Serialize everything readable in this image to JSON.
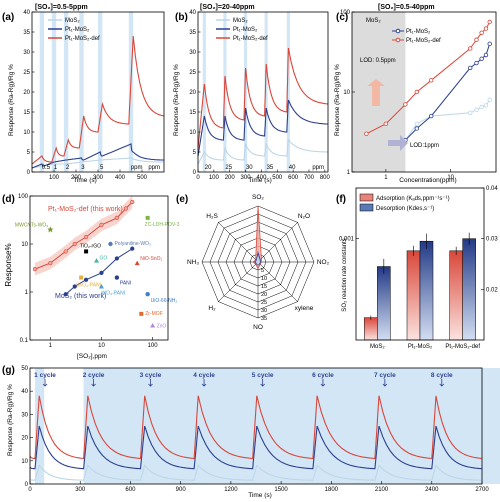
{
  "colors": {
    "mos2": "#bcd6e8",
    "pt1": "#2b3f8f",
    "def": "#d9473a",
    "band": "#d3e6f5"
  },
  "chart_data": [
    {
      "panel": "(a)",
      "type": "line",
      "title": "[SO₂]=0.5-5ppm",
      "xlabel": "Time (s)",
      "ylabel": "Response (Ra-Rg)/Rg %",
      "xlim": [
        0,
        600
      ],
      "ylim": [
        0,
        40
      ],
      "xticks": [
        100,
        200,
        300,
        400,
        500
      ],
      "yticks": [
        0,
        5,
        10,
        15,
        20,
        25,
        30,
        35,
        40
      ],
      "legend": [
        "MoS₂",
        "Pt₁-MoS₂",
        "Pt₁-MoS₂-def"
      ],
      "annotations": [
        "0.5",
        "1",
        "2",
        "3",
        "5",
        "ppm"
      ],
      "bands": [
        [
          35,
          55
        ],
        [
          90,
          110
        ],
        [
          145,
          165
        ],
        [
          215,
          235
        ],
        [
          300,
          320
        ],
        [
          440,
          460
        ]
      ],
      "series": [
        {
          "name": "MoS₂",
          "points": [
            [
              0,
              1
            ],
            [
              45,
              1.5
            ],
            [
              100,
              2
            ],
            [
              155,
              2
            ],
            [
              225,
              2.5
            ],
            [
              310,
              3
            ],
            [
              450,
              3.5
            ],
            [
              600,
              2.5
            ]
          ]
        },
        {
          "name": "Pt₁-MoS₂",
          "points": [
            [
              0,
              1
            ],
            [
              45,
              2
            ],
            [
              55,
              1.5
            ],
            [
              100,
              2.5
            ],
            [
              155,
              3
            ],
            [
              225,
              3.5
            ],
            [
              235,
              3
            ],
            [
              310,
              5
            ],
            [
              320,
              4
            ],
            [
              450,
              7
            ],
            [
              460,
              5
            ],
            [
              600,
              3
            ]
          ]
        },
        {
          "name": "Pt₁-MoS₂-def",
          "points": [
            [
              0,
              2
            ],
            [
              45,
              4
            ],
            [
              90,
              2.5
            ],
            [
              110,
              6
            ],
            [
              145,
              4
            ],
            [
              165,
              8
            ],
            [
              215,
              6
            ],
            [
              235,
              14
            ],
            [
              300,
              10
            ],
            [
              320,
              17
            ],
            [
              440,
              12
            ],
            [
              460,
              34
            ],
            [
              600,
              14
            ]
          ]
        }
      ]
    },
    {
      "panel": "(b)",
      "type": "line",
      "title": "[SO₂]=20-40ppm",
      "xlabel": "Time (s)",
      "ylabel": "Response (Ra-Rg)/Rg %",
      "xlim": [
        0,
        820
      ],
      "ylim": [
        0,
        40
      ],
      "xticks": [
        0,
        100,
        200,
        300,
        400,
        500,
        600,
        700,
        800
      ],
      "yticks": [
        0,
        5,
        10,
        15,
        20,
        25,
        30,
        35,
        40
      ],
      "legend": [
        "MoS₂",
        "Pt₁-MoS₂",
        "Pt₁-MoS₂-def"
      ],
      "annotations": [
        "20",
        "25",
        "30",
        "35",
        "40",
        "ppm"
      ],
      "bands": [
        [
          30,
          50
        ],
        [
          160,
          180
        ],
        [
          290,
          310
        ],
        [
          420,
          440
        ],
        [
          560,
          580
        ]
      ],
      "series": [
        {
          "name": "MoS₂",
          "points": [
            [
              0,
              2
            ],
            [
              40,
              5
            ],
            [
              160,
              3
            ],
            [
              170,
              6
            ],
            [
              290,
              3
            ],
            [
              300,
              7
            ],
            [
              420,
              4
            ],
            [
              430,
              7
            ],
            [
              560,
              4
            ],
            [
              570,
              8
            ],
            [
              820,
              5
            ]
          ]
        },
        {
          "name": "Pt₁-MoS₂",
          "points": [
            [
              0,
              4
            ],
            [
              40,
              14
            ],
            [
              160,
              8
            ],
            [
              170,
              14
            ],
            [
              290,
              8
            ],
            [
              300,
              16
            ],
            [
              420,
              9
            ],
            [
              430,
              16
            ],
            [
              560,
              10
            ],
            [
              570,
              18
            ],
            [
              820,
              12
            ]
          ]
        },
        {
          "name": "Pt₁-MoS₂-def",
          "points": [
            [
              0,
              6
            ],
            [
              40,
              22
            ],
            [
              160,
              11
            ],
            [
              170,
              24
            ],
            [
              290,
              13
            ],
            [
              300,
              26
            ],
            [
              420,
              14
            ],
            [
              430,
              27
            ],
            [
              560,
              15
            ],
            [
              570,
              31
            ],
            [
              820,
              17
            ]
          ]
        }
      ]
    },
    {
      "panel": "(c)",
      "type": "scatter",
      "title": "[SO₂]=0.5-40ppm",
      "xlabel": "Concentration(ppm)",
      "ylabel": "Response (Ra-Rg)/Rg %",
      "scale": "log-log",
      "xlim": [
        0.3,
        50
      ],
      "ylim": [
        1,
        100
      ],
      "xticks": [
        1,
        10
      ],
      "yticks": [
        1,
        10,
        100
      ],
      "legend": [
        "MoS₂",
        "Pt₁-MoS₂",
        "Pt₁-MoS₂-def"
      ],
      "annotations": [
        "LOD: 0.5ppm",
        "LOD:1ppm"
      ],
      "series": [
        {
          "name": "MoS₂",
          "x": [
            2,
            3,
            5,
            20,
            25,
            30,
            35,
            40
          ],
          "y": [
            2.5,
            4,
            5,
            5.5,
            6,
            6.5,
            6.8,
            8
          ]
        },
        {
          "name": "Pt₁-MoS₂",
          "x": [
            2,
            3,
            5,
            20,
            25,
            30,
            35,
            40
          ],
          "y": [
            2.5,
            3.5,
            5,
            20,
            23,
            26,
            29,
            40
          ]
        },
        {
          "name": "Pt₁-MoS₂-def",
          "x": [
            0.5,
            1,
            2,
            3,
            5,
            20,
            25,
            30,
            35,
            40
          ],
          "y": [
            3,
            4,
            7,
            10,
            14,
            35,
            45,
            55,
            62,
            75
          ]
        }
      ]
    },
    {
      "panel": "(d)",
      "type": "scatter",
      "scale": "log-log",
      "xlabel": "[SO₂],ppm",
      "ylabel": "Response%",
      "xlim": [
        0.4,
        200
      ],
      "ylim": [
        0.1,
        100
      ],
      "xticks": [
        1,
        10,
        100
      ],
      "yticks": [
        0.1,
        1,
        10,
        100
      ],
      "annotations": [
        "Pt₁-MoS₂-def (this work)",
        "MoS₂ (this work)"
      ],
      "points": [
        {
          "label": "MWCNTs-WO₃",
          "x": 1,
          "y": 20
        },
        {
          "label": "TiO₂-rGO",
          "x": 5,
          "y": 7
        },
        {
          "label": "GO",
          "x": 8,
          "y": 4.5
        },
        {
          "label": "Polyaniline-WO₃",
          "x": 15,
          "y": 10
        },
        {
          "label": "ZC-LDH-POV-3",
          "x": 80,
          "y": 35
        },
        {
          "label": "NiO-SnO₂",
          "x": 50,
          "y": 4
        },
        {
          "label": "PANI",
          "x": 20,
          "y": 2
        },
        {
          "label": "SnO₂-PANI",
          "x": 4,
          "y": 2
        },
        {
          "label": "WO₃-PANI",
          "x": 10,
          "y": 1.3
        },
        {
          "label": "UiO-66-NH₂",
          "x": 80,
          "y": 0.9
        },
        {
          "label": "Zr-MOF",
          "x": 60,
          "y": 0.35
        },
        {
          "label": "ZnO",
          "x": 100,
          "y": 0.2
        }
      ],
      "series": [
        {
          "name": "Pt₁-MoS₂-def (this work)",
          "x": [
            0.5,
            1,
            2,
            3,
            5,
            10,
            20,
            30,
            40
          ],
          "y": [
            3,
            4,
            7,
            10,
            14,
            25,
            35,
            55,
            75
          ]
        },
        {
          "name": "MoS₂ (this work)",
          "x": [
            2,
            3,
            5,
            10,
            20,
            40
          ],
          "y": [
            0.9,
            1.3,
            1.8,
            2.5,
            5,
            8
          ]
        }
      ]
    },
    {
      "panel": "(e)",
      "type": "radar",
      "axes": [
        "SO₂",
        "N₂O",
        "NO₂",
        "xylene",
        "NO",
        "H₂",
        "NH₃",
        "H₂S"
      ],
      "rticks": [
        5,
        10,
        15,
        20,
        25,
        30,
        35
      ],
      "rmax": 35,
      "series": [
        {
          "name": "Pt₁-MoS₂-def",
          "values": [
            35,
            3,
            2,
            2,
            4,
            2,
            3,
            2
          ]
        },
        {
          "name": "Pt₁-MoS₂",
          "values": [
            6,
            2,
            1.5,
            1.5,
            2,
            1.5,
            2,
            1.5
          ]
        },
        {
          "name": "MoS₂",
          "values": [
            3,
            1,
            1,
            1,
            1.5,
            1,
            1,
            1
          ]
        }
      ]
    },
    {
      "panel": "(f)",
      "type": "bar",
      "ylabel": "SO₂ reaction rate constants",
      "categories": [
        "MoS₂",
        "Pt₁-MoS₂",
        "Pt₁-MoS₂-def"
      ],
      "legend": [
        "Adsorption (Kₐds,ppm⁻¹s⁻¹)",
        "Desorption (Kdes,s⁻¹)"
      ],
      "left_axis": {
        "ylim": [
          0,
          0.0015
        ],
        "ticklabel": "0.001",
        "tickvalue": 0.001
      },
      "right_axis": {
        "ylim": [
          0.01,
          0.04
        ],
        "yticks": [
          0.02,
          0.03,
          0.04
        ]
      },
      "series": [
        {
          "name": "Adsorption",
          "values": [
            0.00022,
            0.00088,
            0.00088
          ],
          "errors": [
            2e-05,
            5e-05,
            4e-05
          ]
        },
        {
          "name": "Desorption",
          "values": [
            0.0245,
            0.0295,
            0.03
          ],
          "errors": [
            0.0015,
            0.0015,
            0.0012
          ]
        }
      ]
    },
    {
      "panel": "(g)",
      "type": "line",
      "xlabel": "Time (s)",
      "ylabel": "Response (Ra-Rg)/Rg %",
      "xlim": [
        0,
        2700
      ],
      "ylim": [
        0,
        50
      ],
      "xticks": [
        0,
        300,
        600,
        900,
        1200,
        1500,
        1800,
        2100,
        2400,
        2700
      ],
      "yticks": [
        0,
        10,
        20,
        30,
        40,
        50
      ],
      "annotations": [
        "1 cycle",
        "2 cycle",
        "3 cycle",
        "4 cycle",
        "5 cycle",
        "6 cycle",
        "7 cycle",
        "8 cycle"
      ],
      "cycle_starts": [
        30,
        320,
        660,
        980,
        1330,
        1690,
        2060,
        2400
      ],
      "series": [
        {
          "name": "MoS₂",
          "peak": 8,
          "base": 3
        },
        {
          "name": "Pt₁-MoS₂",
          "peak": 25,
          "base": 12
        },
        {
          "name": "Pt₁-MoS₂-def",
          "peak": 38,
          "base": 20
        }
      ]
    }
  ]
}
